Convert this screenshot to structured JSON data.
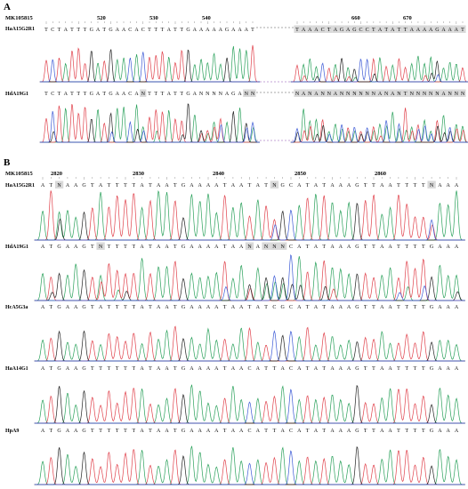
{
  "panels": [
    {
      "letter": "A",
      "reference": "MK105815",
      "positions": [
        "520",
        "530",
        "540",
        "660",
        "670"
      ],
      "segments": 2,
      "samples": [
        {
          "name": "HaA15G2R1",
          "seq_left": "TCTATTTGATGAACACTTTATTGAAAAAGAAAT",
          "seq_right": "TAAACTAGAGCCTATATTAAAAGAAAT",
          "ambiguous_left": [],
          "ambiguous_right": [
            0,
            1,
            2,
            3,
            4,
            5,
            6,
            7,
            8,
            9,
            10,
            11,
            12,
            13,
            14,
            15,
            16,
            17,
            18,
            19,
            20,
            21,
            22,
            23,
            24,
            25,
            26
          ]
        },
        {
          "name": "HdA19G1",
          "seq_left": "TCTATTTGATGAACANTTTATTGANNNNAGANN",
          "seq_right": "NANANNANNNNNNANANTNNNNNANNN",
          "ambiguous_left": [
            15,
            31,
            32
          ],
          "ambiguous_right": [
            0,
            1,
            2,
            3,
            4,
            5,
            6,
            7,
            8,
            9,
            10,
            11,
            12,
            13,
            14,
            15,
            16,
            17,
            18,
            19,
            20,
            21,
            22,
            23,
            24,
            25,
            26
          ]
        }
      ]
    },
    {
      "letter": "B",
      "reference": "MK105815",
      "positions": [
        "2820",
        "2830",
        "2840",
        "2850",
        "2860"
      ],
      "segments": 1,
      "samples": [
        {
          "name": "HaA15G2R1",
          "seq": "ATNAAGTATTTTATAATGAAAATAATATNGCATATAAAGTTAATTTTNAAA",
          "ambiguous": [
            2,
            28,
            47
          ]
        },
        {
          "name": "HdA19G1",
          "seq": "ATGAAGTNTTTTATAATGAAAATAANANNNCATATAAAGTTAATTTTGAAA",
          "ambiguous": [
            7,
            25,
            27,
            28,
            29
          ]
        },
        {
          "name": "HcA5G3a",
          "seq": "ATGAAGTATTTTATAATGAAAATAATATCGCATATAAAGTTAATTTTGAAA",
          "ambiguous": []
        },
        {
          "name": "HaA14G1",
          "seq": "ATGAAGTTTTTTATAATGAAAATAACATTACATATAAAGTTAATTTTGAAA",
          "ambiguous": []
        },
        {
          "name": "HpA9",
          "seq": "ATGAAGTTTTTTATAATGAAAATAACATTACATATAAAGTTAATTTTGAAA",
          "ambiguous": []
        }
      ]
    }
  ],
  "base_colors": {
    "A": "#2aa15b",
    "T": "#e0414b",
    "G": "#222222",
    "C": "#3d5bd6",
    "N": "#222222"
  },
  "highlight_color": "#d9d9d9"
}
